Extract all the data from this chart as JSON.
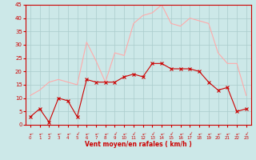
{
  "hours": [
    0,
    1,
    2,
    3,
    4,
    5,
    6,
    7,
    8,
    9,
    10,
    11,
    12,
    13,
    14,
    15,
    16,
    17,
    18,
    19,
    20,
    21,
    22,
    23
  ],
  "wind_avg": [
    3,
    6,
    1,
    10,
    9,
    3,
    17,
    16,
    16,
    16,
    18,
    19,
    18,
    23,
    23,
    21,
    21,
    21,
    20,
    16,
    13,
    14,
    5,
    6
  ],
  "wind_gust": [
    11,
    13,
    16,
    17,
    16,
    15,
    31,
    24,
    16,
    27,
    26,
    38,
    41,
    42,
    45,
    38,
    37,
    40,
    39,
    38,
    27,
    23,
    23,
    11
  ],
  "bg_color": "#cce8e8",
  "grid_color": "#aacccc",
  "line_avg_color": "#cc0000",
  "line_gust_color": "#ffaaaa",
  "tick_color": "#cc0000",
  "xlabel": "Vent moyen/en rafales ( km/h )",
  "xlabel_color": "#cc0000",
  "ylim": [
    0,
    45
  ],
  "yticks": [
    0,
    5,
    10,
    15,
    20,
    25,
    30,
    35,
    40,
    45
  ]
}
